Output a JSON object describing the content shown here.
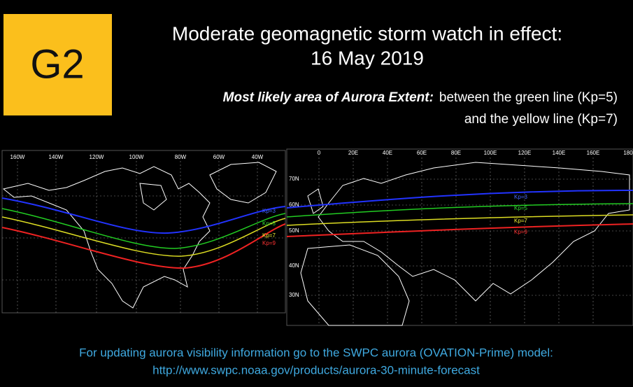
{
  "badge": "G2",
  "title": {
    "line1": "Moderate geomagnetic storm watch in effect:",
    "line2": "16 May 2019"
  },
  "subtitle": {
    "emphasis": "Most likely area of Aurora Extent:",
    "line1": "between the green line (Kp=5)",
    "line2": "and the yellow line (Kp=7)"
  },
  "maps": [
    {
      "longitudes": [
        "160W",
        "140W",
        "120W",
        "100W",
        "80W",
        "60W",
        "40W"
      ],
      "latitudes": [],
      "kp_labels": [
        "Kp=3",
        "Kp=5",
        "Kp=7",
        "Kp=9"
      ]
    },
    {
      "longitudes": [
        "0",
        "20E",
        "40E",
        "60E",
        "80E",
        "100E",
        "120E",
        "140E",
        "160E",
        "180"
      ],
      "latitudes": [
        "70N",
        "60N",
        "50N",
        "40N",
        "30N"
      ],
      "kp_labels": [
        "Kp=3",
        "Kp=5",
        "Kp=7",
        "Kp=9"
      ]
    }
  ],
  "footer": {
    "line1": "For updating aurora visibility information go to the SWPC aurora (OVATION-Prime) model:",
    "line2": "http://www.swpc.noaa.gov/products/aurora-30-minute-forecast"
  }
}
